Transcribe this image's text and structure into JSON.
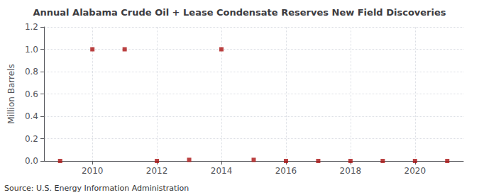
{
  "chart_data": {
    "type": "scatter",
    "title": "Annual Alabama Crude Oil + Lease Condensate Reserves New Field Discoveries",
    "ylabel": "Million Barrels",
    "annotations": [
      "Source: U.S. Energy Information Administration"
    ],
    "x": [
      2009,
      2010,
      2011,
      2012,
      2013,
      2014,
      2015,
      2016,
      2017,
      2018,
      2019,
      2020,
      2021
    ],
    "values": [
      0.0,
      1.0,
      1.0,
      0.0,
      0.01,
      1.0,
      0.01,
      0.0,
      0.0,
      0.0,
      0.0,
      0.0,
      0.0
    ],
    "color": "#aa1111",
    "marker": "square",
    "xlim": [
      2008.5,
      2021.5
    ],
    "xticks": [
      2010,
      2012,
      2014,
      2016,
      2018,
      2020
    ],
    "ylim": [
      0.0,
      1.2
    ],
    "yticks": [
      {
        "value": 0.0,
        "label": "0.0"
      },
      0.2,
      0.4,
      0.6,
      0.8,
      {
        "value": 1.0,
        "label": "1.0"
      },
      1.2
    ],
    "grid": true
  }
}
